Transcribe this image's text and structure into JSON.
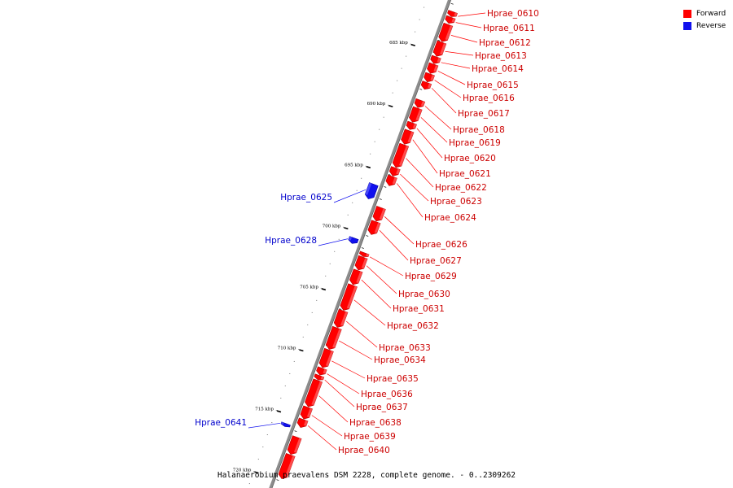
{
  "legend": {
    "items": [
      {
        "label": "Forward",
        "color": "#ff0000"
      },
      {
        "label": "Reverse",
        "color": "#0000ff"
      }
    ]
  },
  "caption": "Halanaerobium praevalens DSM 2228, complete genome. - 0..2309262",
  "colors": {
    "forward": "#ff0000",
    "forward_dark": "#b30000",
    "reverse": "#1010ee",
    "reverse_dark": "#0000a0",
    "backbone": "#8c8c8c"
  },
  "scale": {
    "unit": "kbp",
    "ticks": [
      685,
      690,
      695,
      700,
      705,
      710,
      715,
      720
    ]
  },
  "genes": {
    "forward": [
      {
        "name": "Hprae_0610",
        "start": 681.55,
        "end": 681.95
      },
      {
        "name": "Hprae_0611",
        "start": 682.0,
        "end": 682.5
      },
      {
        "name": "Hprae_0612",
        "start": 682.6,
        "end": 684.0
      },
      {
        "name": "Hprae_0613",
        "start": 684.05,
        "end": 685.2
      },
      {
        "name": "Hprae_0614",
        "start": 685.25,
        "end": 685.8
      },
      {
        "name": "Hprae_0615",
        "start": 685.85,
        "end": 686.6
      },
      {
        "name": "Hprae_0616",
        "start": 686.65,
        "end": 687.3
      },
      {
        "name": "Hprae_0617",
        "start": 687.35,
        "end": 687.9
      },
      {
        "name": "Hprae_0618",
        "start": 688.8,
        "end": 689.4
      },
      {
        "name": "Hprae_0619",
        "start": 689.45,
        "end": 690.6
      },
      {
        "name": "Hprae_0620",
        "start": 690.65,
        "end": 691.2
      },
      {
        "name": "Hprae_0621",
        "start": 691.3,
        "end": 692.4
      },
      {
        "name": "Hprae_0622",
        "start": 692.45,
        "end": 694.3
      },
      {
        "name": "Hprae_0623",
        "start": 694.35,
        "end": 695.0
      },
      {
        "name": "Hprae_0624",
        "start": 695.05,
        "end": 695.8
      },
      {
        "name": "Hprae_0626",
        "start": 697.6,
        "end": 698.7
      },
      {
        "name": "Hprae_0627",
        "start": 698.75,
        "end": 699.8
      },
      {
        "name": "Hprae_0629",
        "start": 701.3,
        "end": 701.6
      },
      {
        "name": "Hprae_0630",
        "start": 701.65,
        "end": 702.7
      },
      {
        "name": "Hprae_0631",
        "start": 702.75,
        "end": 703.9
      },
      {
        "name": "Hprae_0632",
        "start": 703.95,
        "end": 706.0
      },
      {
        "name": "Hprae_0633",
        "start": 706.05,
        "end": 707.4
      },
      {
        "name": "Hprae_0634",
        "start": 707.45,
        "end": 709.2
      },
      {
        "name": "Hprae_0635",
        "start": 709.25,
        "end": 710.7
      },
      {
        "name": "Hprae_0636",
        "start": 710.75,
        "end": 711.3
      },
      {
        "name": "Hprae_0637",
        "start": 711.35,
        "end": 711.7
      },
      {
        "name": "Hprae_0638",
        "start": 711.75,
        "end": 713.9
      },
      {
        "name": "Hprae_0639",
        "start": 713.95,
        "end": 714.9
      },
      {
        "name": "Hprae_0640",
        "start": 714.95,
        "end": 715.6
      },
      {
        "name": "",
        "start": 716.4,
        "end": 717.8
      },
      {
        "name": "",
        "start": 717.85,
        "end": 719.8
      }
    ],
    "reverse": [
      {
        "name": "Hprae_0625",
        "start": 696.1,
        "end": 697.3
      },
      {
        "name": "Hprae_0628",
        "start": 700.5,
        "end": 700.95
      },
      {
        "name": "Hprae_0641",
        "start": 715.7,
        "end": 715.95
      }
    ]
  }
}
